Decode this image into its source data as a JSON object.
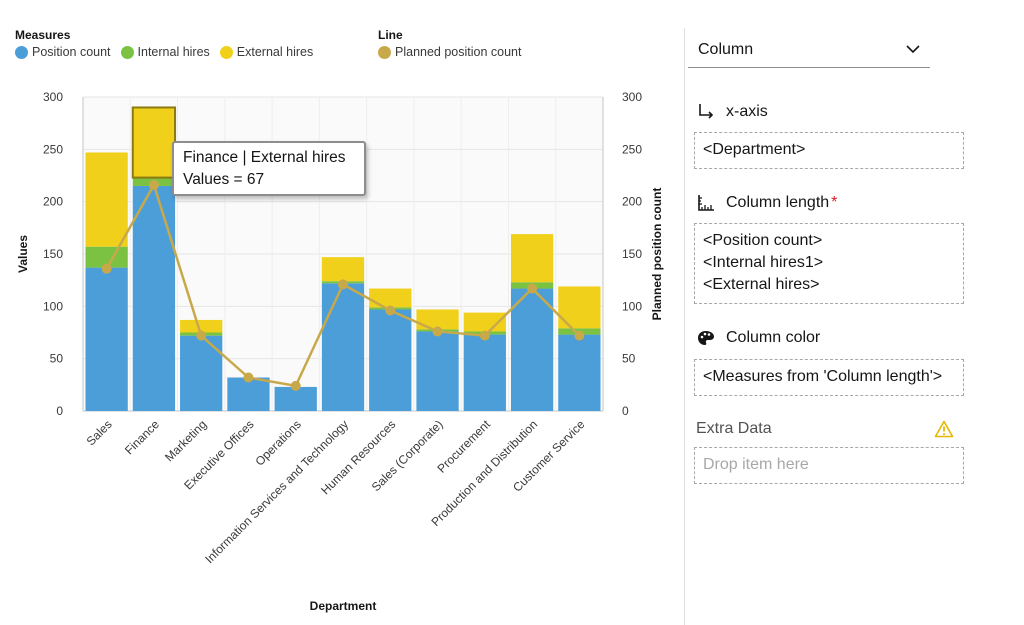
{
  "legend": {
    "measures_title": "Measures",
    "line_title": "Line",
    "measures": [
      {
        "label": "Position count",
        "color": "#4c9ed9"
      },
      {
        "label": "Internal hires",
        "color": "#7cc242"
      },
      {
        "label": "External hires",
        "color": "#f1d01c"
      }
    ],
    "lines": [
      {
        "label": "Planned position count",
        "color": "#c8a94a"
      }
    ]
  },
  "tooltip": {
    "line1": "Finance | External hires",
    "line2": "Values = 67"
  },
  "chart_data": {
    "type": "bar",
    "stacked": true,
    "categories": [
      "Sales",
      "Finance",
      "Marketing",
      "Executive Offices",
      "Operations",
      "Information Services and Technology",
      "Human Resources",
      "Sales (Corporate)",
      "Procurement",
      "Production and Distribution",
      "Customer Service"
    ],
    "series": [
      {
        "name": "Position count",
        "color": "#4c9ed9",
        "values": [
          137,
          215,
          72,
          32,
          23,
          122,
          97,
          76,
          73,
          117,
          73
        ]
      },
      {
        "name": "Internal hires",
        "color": "#7cc242",
        "values": [
          20,
          8,
          3,
          0,
          0,
          2,
          2,
          2,
          3,
          6,
          6
        ]
      },
      {
        "name": "External hires",
        "color": "#f1d01c",
        "values": [
          90,
          67,
          12,
          0,
          0,
          23,
          18,
          19,
          18,
          46,
          40
        ]
      }
    ],
    "line_series": {
      "name": "Planned position count",
      "color": "#c8a94a",
      "values": [
        136,
        216,
        72,
        32,
        24,
        121,
        96,
        76,
        72,
        117,
        72
      ]
    },
    "highlighted": {
      "category": "Finance",
      "series": "External hires"
    },
    "xlabel": "Department",
    "ylabel": "Values",
    "y2label": "Planned position count",
    "ylim": [
      0,
      300
    ],
    "y2lim": [
      0,
      300
    ],
    "yticks": [
      0,
      50,
      100,
      150,
      200,
      250,
      300
    ],
    "grid": true
  },
  "panel": {
    "chart_type": "Column",
    "xaxis_label": "x-axis",
    "xaxis_items": [
      "<Department>"
    ],
    "length_label": "Column length",
    "length_required": "*",
    "length_items": [
      "<Position count>",
      "<Internal hires1>",
      "<External hires>"
    ],
    "color_label": "Column color",
    "color_items": [
      "<Measures from 'Column length'>"
    ],
    "extra_label": "Extra Data",
    "extra_placeholder": "Drop item here"
  }
}
